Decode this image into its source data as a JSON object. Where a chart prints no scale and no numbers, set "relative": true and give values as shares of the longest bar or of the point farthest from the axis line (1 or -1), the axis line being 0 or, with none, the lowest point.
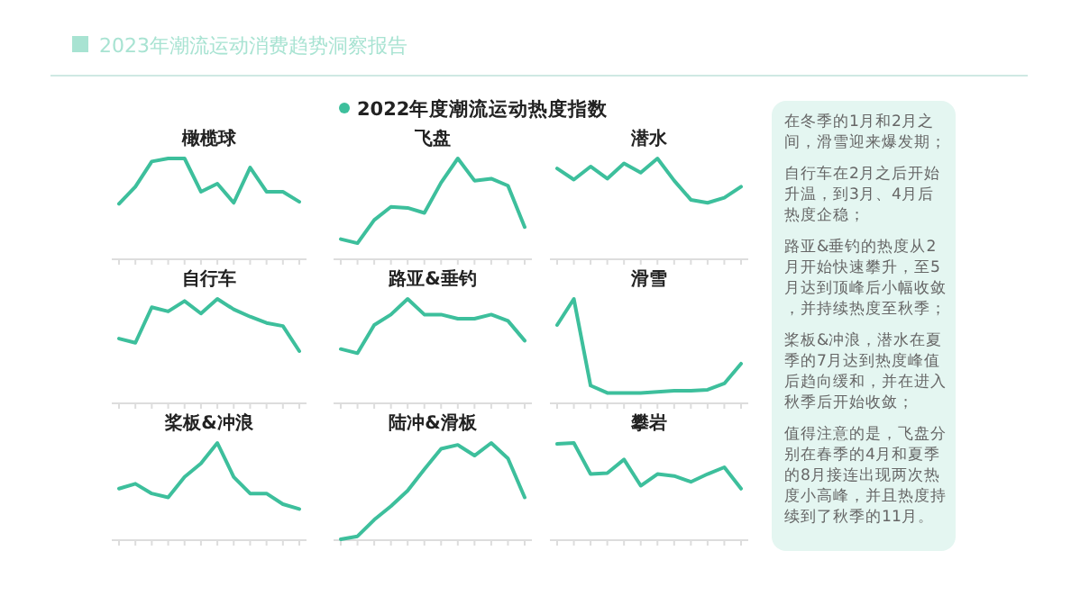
{
  "chart_data": [
    {
      "type": "other",
      "title": "2023年潮流运动消费趋势洞察报告",
      "subtitle": "2022年度潮流运动热度指数"
    },
    {
      "type": "line",
      "title": "橄榄球",
      "relative": true,
      "color": "#3dbf9c",
      "categories": [
        null,
        null,
        null,
        null,
        null,
        null,
        null,
        null,
        null,
        null,
        null,
        null
      ],
      "values": [
        0.55,
        0.72,
        0.97,
        1.0,
        1.0,
        0.67,
        0.75,
        0.56,
        0.91,
        0.67,
        0.67,
        0.57
      ]
    },
    {
      "type": "line",
      "title": "飞盘",
      "relative": true,
      "color": "#3dbf9c",
      "categories": [
        null,
        null,
        null,
        null,
        null,
        null,
        null,
        null,
        null,
        null,
        null,
        null
      ],
      "values": [
        0.2,
        0.16,
        0.39,
        0.52,
        0.51,
        0.46,
        0.76,
        1.0,
        0.78,
        0.8,
        0.73,
        0.32
      ]
    },
    {
      "type": "line",
      "title": "潜水",
      "relative": true,
      "color": "#3dbf9c",
      "categories": [
        null,
        null,
        null,
        null,
        null,
        null,
        null,
        null,
        null,
        null,
        null,
        null
      ],
      "values": [
        0.9,
        0.79,
        0.92,
        0.8,
        0.95,
        0.86,
        1.0,
        0.78,
        0.59,
        0.56,
        0.61,
        0.72
      ]
    },
    {
      "type": "line",
      "title": "自行车",
      "relative": true,
      "color": "#3dbf9c",
      "categories": [
        null,
        null,
        null,
        null,
        null,
        null,
        null,
        null,
        null,
        null,
        null,
        null
      ],
      "values": [
        0.62,
        0.58,
        0.92,
        0.88,
        0.98,
        0.86,
        1.0,
        0.9,
        0.83,
        0.77,
        0.74,
        0.5
      ]
    },
    {
      "type": "line",
      "title": "路亚&垂钓",
      "relative": true,
      "color": "#3dbf9c",
      "categories": [
        null,
        null,
        null,
        null,
        null,
        null,
        null,
        null,
        null,
        null,
        null,
        null
      ],
      "values": [
        0.52,
        0.48,
        0.75,
        0.85,
        1.0,
        0.85,
        0.85,
        0.81,
        0.81,
        0.85,
        0.79,
        0.6
      ]
    },
    {
      "type": "line",
      "title": "滑雪",
      "relative": true,
      "color": "#3dbf9c",
      "categories": [
        null,
        null,
        null,
        null,
        null,
        null,
        null,
        null,
        null,
        null,
        null,
        null
      ],
      "values": [
        0.75,
        1.0,
        0.17,
        0.1,
        0.1,
        0.1,
        0.11,
        0.12,
        0.12,
        0.13,
        0.19,
        0.38
      ]
    },
    {
      "type": "line",
      "title": "桨板&冲浪",
      "relative": true,
      "color": "#3dbf9c",
      "categories": [
        null,
        null,
        null,
        null,
        null,
        null,
        null,
        null,
        null,
        null,
        null,
        null
      ],
      "values": [
        0.53,
        0.58,
        0.48,
        0.44,
        0.65,
        0.79,
        1.0,
        0.65,
        0.48,
        0.48,
        0.37,
        0.32
      ]
    },
    {
      "type": "line",
      "title": "陆冲&滑板",
      "relative": true,
      "color": "#3dbf9c",
      "categories": [
        null,
        null,
        null,
        null,
        null,
        null,
        null,
        null,
        null,
        null,
        null,
        null
      ],
      "values": [
        0.01,
        0.04,
        0.21,
        0.35,
        0.51,
        0.73,
        0.94,
        0.98,
        0.87,
        1.0,
        0.84,
        0.44
      ]
    },
    {
      "type": "line",
      "title": "攀岩",
      "relative": true,
      "color": "#3dbf9c",
      "categories": [
        null,
        null,
        null,
        null,
        null,
        null,
        null,
        null,
        null,
        null,
        null,
        null
      ],
      "values": [
        0.99,
        1.0,
        0.68,
        0.69,
        0.83,
        0.56,
        0.68,
        0.66,
        0.6,
        0.68,
        0.75,
        0.53
      ]
    },
    {
      "type": "other",
      "annotations": [
        "在冬季的1月和2月之间，滑雪迎来爆发期；",
        "自行车在2月之后开始升温，到3月、4月后热度企稳；",
        "路亚&垂钓的热度从2月开始快速攀升，至5月达到顶峰后小幅收敛，并持续热度至秋季；",
        "桨板&冲浪，潜水在夏季的7月达到热度峰值后趋向缓和，并在进入秋季后开始收敛；",
        "值得注意的是，飞盘分别在春季的4月和夏季的8月接连出现两次热度小高峰，并且热度持续到了秋季的11月。"
      ]
    }
  ]
}
